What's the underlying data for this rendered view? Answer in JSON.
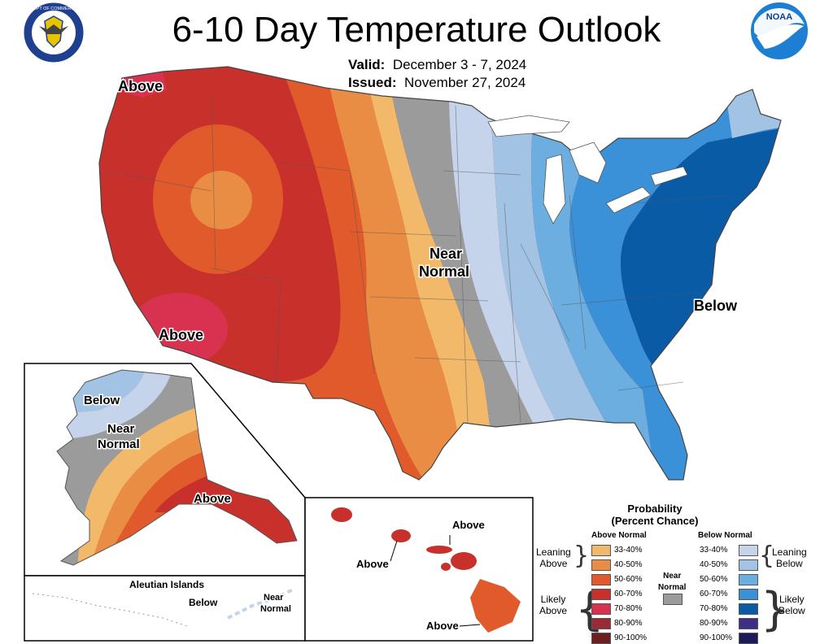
{
  "header": {
    "title": "6-10 Day Temperature Outlook",
    "valid_label": "Valid:",
    "valid_value": "December 3 - 7, 2024",
    "issued_label": "Issued:",
    "issued_value": "November 27, 2024",
    "doc_seal_text": "DEPARTMENT OF COMMERCE · UNITED STATES OF AMERICA",
    "noaa_logo_text": "NOAA"
  },
  "map": {
    "labels": {
      "above_nw": "Above",
      "above_sw": "Above",
      "near_normal": "Near",
      "near_normal2": "Normal",
      "below_east": "Below"
    },
    "alaska": {
      "below": "Below",
      "near": "Near",
      "normal": "Normal",
      "above": "Above"
    },
    "aleutians": {
      "title": "Aleutian Islands",
      "below": "Below",
      "near": "Near",
      "normal": "Normal"
    },
    "hawaii": {
      "above1": "Above",
      "above2": "Above",
      "above3": "Above"
    }
  },
  "legend": {
    "title1": "Probability",
    "title2": "(Percent Chance)",
    "above_header": "Above Normal",
    "below_header": "Below Normal",
    "near_label1": "Near",
    "near_label2": "Normal",
    "leaning_above1": "Leaning",
    "leaning_above2": "Above",
    "likely_above1": "Likely",
    "likely_above2": "Above",
    "leaning_below1": "Leaning",
    "leaning_below2": "Below",
    "likely_below1": "Likely",
    "likely_below2": "Below",
    "above_ranges": [
      "33-40%",
      "40-50%",
      "50-60%",
      "60-70%",
      "70-80%",
      "80-90%",
      "90-100%"
    ],
    "below_ranges": [
      "33-40%",
      "40-50%",
      "50-60%",
      "60-70%",
      "70-80%",
      "80-90%",
      "90-100%"
    ]
  },
  "colors": {
    "above": [
      "#f2b96a",
      "#ea8d44",
      "#e05a2c",
      "#c8312b",
      "#d83250",
      "#9a2a36",
      "#6b1f1f"
    ],
    "below": [
      "#c5d4ea",
      "#a3c3e4",
      "#6caee0",
      "#3a91d8",
      "#0a5ba6",
      "#3c2f85",
      "#1d1a5c"
    ],
    "near": "#9b9b9b"
  }
}
